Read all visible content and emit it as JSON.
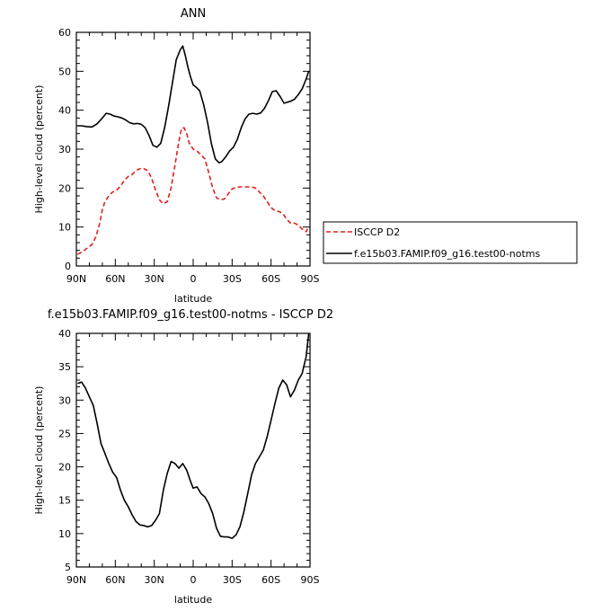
{
  "chart_data": [
    {
      "type": "line",
      "title": "ANN",
      "xlabel": "latitude",
      "ylabel": "High-level cloud (percent)",
      "xlim": [
        90,
        -90
      ],
      "ylim": [
        0,
        60
      ],
      "x_tick_values": [
        90,
        60,
        30,
        0,
        -30,
        -60,
        -90
      ],
      "x_tick_labels": [
        "90N",
        "60N",
        "30N",
        "0",
        "30S",
        "60S",
        "90S"
      ],
      "y_ticks": [
        0,
        10,
        20,
        30,
        40,
        50,
        60
      ],
      "grid": false,
      "legend_position": "right",
      "series": [
        {
          "name": "f.e15b03.FAMIP.f09_g16.test00-notms",
          "color": "#000000",
          "dash": "solid",
          "x": [
            89,
            86,
            82,
            78,
            74,
            70,
            67,
            64,
            61,
            58,
            55,
            52,
            49,
            46,
            43,
            40,
            37,
            34,
            31,
            28,
            25,
            22,
            19,
            16,
            13,
            10,
            8,
            6,
            4,
            2,
            0,
            -2,
            -5,
            -8,
            -11,
            -14,
            -17,
            -20,
            -22,
            -25,
            -28,
            -31,
            -34,
            -37,
            -40,
            -43,
            -46,
            -49,
            -52,
            -55,
            -58,
            -61,
            -64,
            -67,
            -70,
            -72,
            -75,
            -78,
            -81,
            -84,
            -87,
            -89
          ],
          "values": [
            36,
            36,
            35.8,
            35.7,
            36.5,
            38,
            39.2,
            39,
            38.5,
            38.3,
            38,
            37.5,
            36.8,
            36.5,
            36.6,
            36.4,
            35.5,
            33.5,
            31,
            30.5,
            31.5,
            35.5,
            41,
            47,
            53,
            55.5,
            56.5,
            54,
            51,
            48.5,
            46.5,
            46,
            45,
            41.5,
            37,
            31.5,
            27.5,
            26.5,
            26.8,
            28,
            29.5,
            30.5,
            32.5,
            35.5,
            37.8,
            39,
            39.2,
            39,
            39.3,
            40.5,
            42.5,
            44.8,
            45,
            43.5,
            41.8,
            42,
            42.3,
            42.8,
            44,
            45.5,
            48,
            50
          ]
        },
        {
          "name": "ISCCP D2",
          "color": "#e0201b",
          "dash": "dashed",
          "x": [
            89,
            86,
            82,
            78,
            75,
            72,
            70,
            68,
            65,
            62,
            59,
            56,
            53,
            50,
            47,
            44,
            41,
            38,
            35,
            32,
            29,
            26,
            23,
            20,
            17,
            14,
            11,
            9,
            7,
            5,
            3,
            0,
            -3,
            -6,
            -9,
            -12,
            -15,
            -18,
            -21,
            -24,
            -27,
            -30,
            -33,
            -36,
            -39,
            -42,
            -45,
            -48,
            -51,
            -54,
            -57,
            -60,
            -63,
            -66,
            -69,
            -72,
            -75,
            -78,
            -81,
            -84,
            -87,
            -89
          ],
          "values": [
            3,
            3.5,
            4.5,
            5.5,
            7.5,
            11,
            14.5,
            16.5,
            18,
            19,
            19.5,
            20.5,
            22,
            23,
            23.5,
            24.5,
            25,
            25,
            24.5,
            22.5,
            19.5,
            17,
            16,
            16.5,
            20,
            26,
            32,
            35.3,
            35.5,
            34,
            31.5,
            30,
            29.5,
            28.5,
            27.5,
            24,
            20,
            17.5,
            17,
            17.2,
            18.5,
            19.8,
            20.2,
            20.3,
            20.3,
            20.3,
            20.3,
            20,
            19,
            18,
            16.5,
            15,
            14.2,
            14,
            13.5,
            12,
            11,
            11,
            10.5,
            9.5,
            8.8,
            10.2
          ]
        }
      ]
    },
    {
      "type": "line",
      "title": "f.e15b03.FAMIP.f09_g16.test00-notms - ISCCP D2",
      "xlabel": "latitude",
      "ylabel": "High-level cloud (percent)",
      "xlim": [
        90,
        -90
      ],
      "ylim": [
        5,
        40
      ],
      "x_tick_values": [
        90,
        60,
        30,
        0,
        -30,
        -60,
        -90
      ],
      "x_tick_labels": [
        "90N",
        "60N",
        "30N",
        "0",
        "30S",
        "60S",
        "90S"
      ],
      "y_ticks": [
        5,
        10,
        15,
        20,
        25,
        30,
        35,
        40
      ],
      "grid": false,
      "series": [
        {
          "color": "#000000",
          "dash": "solid",
          "x": [
            89,
            86,
            83,
            80,
            77,
            74,
            71,
            68,
            65,
            62,
            59,
            56,
            53,
            50,
            47,
            44,
            41,
            38,
            35,
            32,
            29,
            26,
            23,
            20,
            17,
            14,
            11,
            8,
            5,
            2,
            0,
            -3,
            -6,
            -9,
            -12,
            -15,
            -18,
            -21,
            -24,
            -27,
            -30,
            -33,
            -36,
            -39,
            -42,
            -45,
            -48,
            -51,
            -54,
            -57,
            -60,
            -63,
            -66,
            -69,
            -72,
            -75,
            -78,
            -81,
            -84,
            -87,
            -89
          ],
          "values": [
            32.5,
            32.7,
            31.8,
            30.5,
            29.2,
            26.5,
            23.5,
            22,
            20.5,
            19.2,
            18.4,
            16.5,
            15,
            14,
            12.8,
            11.8,
            11.3,
            11.2,
            11,
            11.2,
            12,
            13,
            16.5,
            19,
            20.8,
            20.5,
            19.8,
            20.5,
            19.5,
            17.8,
            16.8,
            17,
            16,
            15.5,
            14.5,
            13,
            10.8,
            9.6,
            9.5,
            9.5,
            9.3,
            9.8,
            11,
            13.2,
            16,
            18.8,
            20.5,
            21.5,
            22.5,
            24.5,
            27,
            29.5,
            31.8,
            33,
            32.3,
            30.5,
            31.5,
            33,
            34,
            36.5,
            40
          ]
        }
      ]
    }
  ]
}
